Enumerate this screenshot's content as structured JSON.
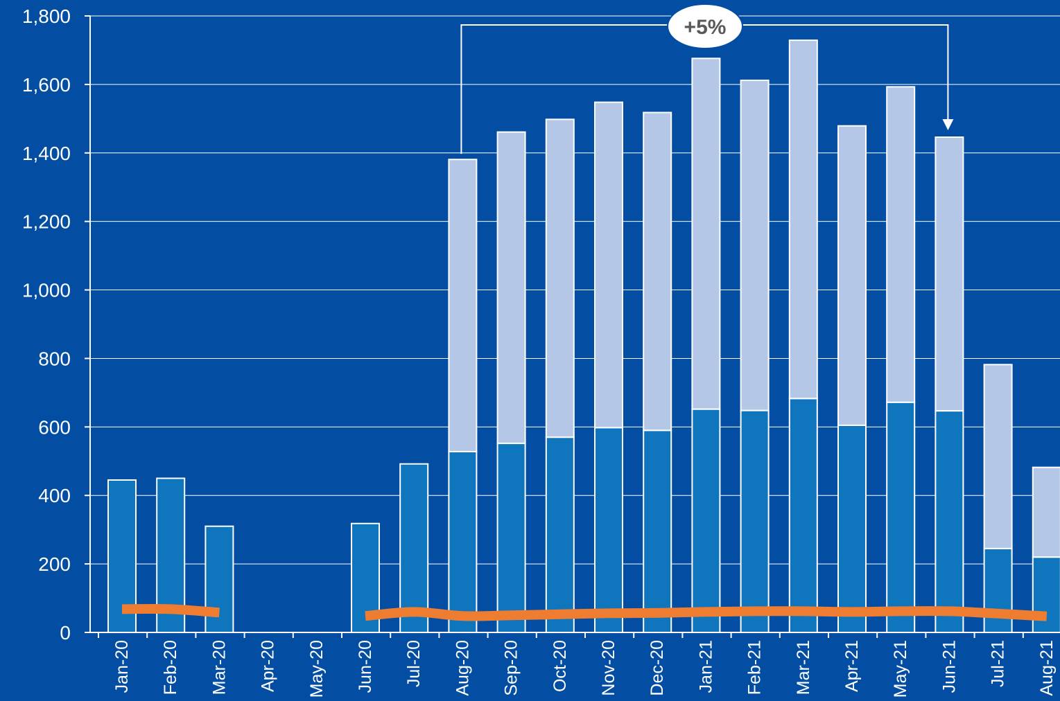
{
  "chart_data": {
    "type": "bar",
    "stacked": true,
    "categories": [
      "Jan-20",
      "Feb-20",
      "Mar-20",
      "Apr-20",
      "May-20",
      "Jun-20",
      "Jul-20",
      "Aug-20",
      "Sep-20",
      "Oct-20",
      "Nov-20",
      "Dec-20",
      "Jan-21",
      "Feb-21",
      "Mar-21",
      "Apr-21",
      "May-21",
      "Jun-21",
      "Jul-21",
      "Aug-21"
    ],
    "series": [
      {
        "values": [
          445,
          450,
          310,
          null,
          null,
          318,
          492,
          528,
          552,
          570,
          598,
          590,
          652,
          648,
          683,
          605,
          672,
          647,
          245,
          220
        ],
        "color": "#0f75bc"
      },
      {
        "values": [
          0,
          0,
          0,
          null,
          null,
          0,
          0,
          853,
          909,
          928,
          950,
          928,
          1024,
          964,
          1046,
          874,
          921,
          799,
          537,
          262
        ],
        "color": "#b4c7e7"
      }
    ],
    "line": {
      "values": [
        68,
        68,
        58,
        null,
        null,
        48,
        60,
        48,
        50,
        53,
        56,
        57,
        60,
        62,
        62,
        60,
        62,
        62,
        55,
        47
      ],
      "color": "#ee7d31"
    },
    "ylim": [
      0,
      1800
    ],
    "yticks": [
      "0",
      "200",
      "400",
      "600",
      "800",
      "1,000",
      "1,200",
      "1,400",
      "1,600",
      "1,800"
    ],
    "grid": true,
    "annotation": {
      "text": "+5%",
      "from": "Aug-20",
      "to": "Jun-21"
    },
    "colors": {
      "background": "#034ea2",
      "grid": "#ffffff"
    }
  }
}
